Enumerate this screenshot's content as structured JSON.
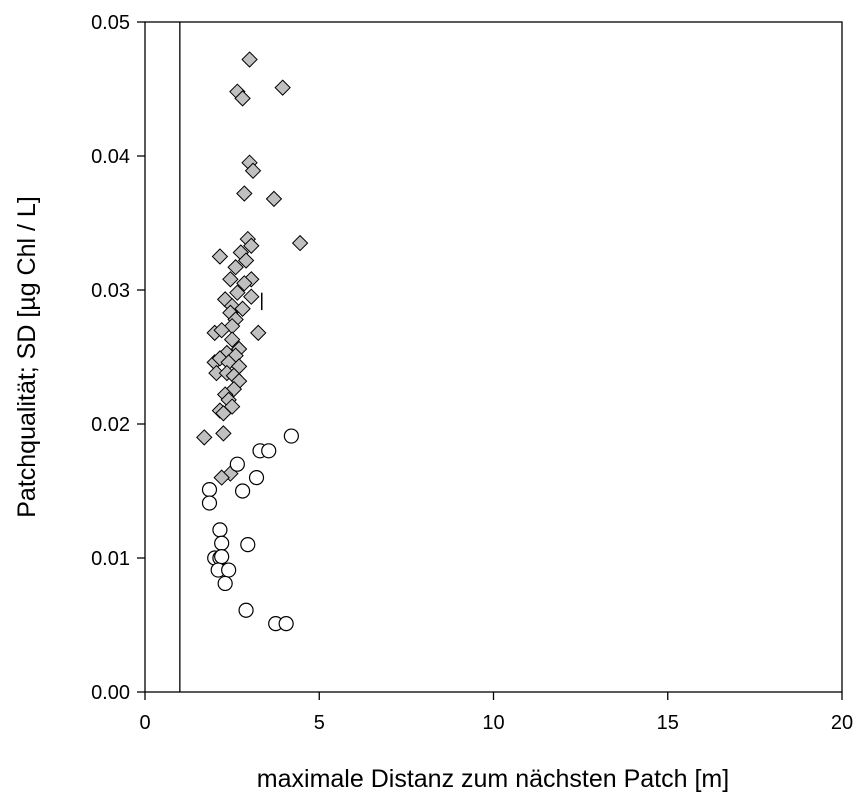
{
  "chart_data": {
    "type": "scatter",
    "title": "",
    "xlabel": "maximale Distanz zum nächsten Patch [m]",
    "ylabel": "Patchqualität; SD [µg Chl / L]",
    "xlim": [
      0,
      20
    ],
    "ylim": [
      0.0,
      0.05
    ],
    "x_ticks": [
      "0",
      "5",
      "10",
      "15",
      "20"
    ],
    "y_ticks": [
      "0.00",
      "0.01",
      "0.02",
      "0.03",
      "0.04",
      "0.05"
    ],
    "reference_line_x": 1,
    "grid": false,
    "legend": "none",
    "series": [
      {
        "marker": "diamond",
        "fill": "#c0c0c0",
        "points": [
          [
            3.0,
            0.0472
          ],
          [
            2.65,
            0.0448
          ],
          [
            2.8,
            0.0443
          ],
          [
            3.95,
            0.0451
          ],
          [
            3.0,
            0.0395
          ],
          [
            3.1,
            0.0389
          ],
          [
            2.85,
            0.0372
          ],
          [
            3.7,
            0.0368
          ],
          [
            4.45,
            0.0335
          ],
          [
            2.95,
            0.0338
          ],
          [
            3.05,
            0.0333
          ],
          [
            2.75,
            0.0328
          ],
          [
            2.15,
            0.0325
          ],
          [
            2.9,
            0.0322
          ],
          [
            2.6,
            0.0317
          ],
          [
            2.45,
            0.0308
          ],
          [
            3.05,
            0.0308
          ],
          [
            2.85,
            0.0305
          ],
          [
            2.65,
            0.0298
          ],
          [
            2.3,
            0.0293
          ],
          [
            3.05,
            0.0295
          ],
          [
            2.5,
            0.0288
          ],
          [
            2.8,
            0.0286
          ],
          [
            2.45,
            0.0283
          ],
          [
            2.6,
            0.0278
          ],
          [
            2.5,
            0.0273
          ],
          [
            2.0,
            0.0268
          ],
          [
            2.2,
            0.027
          ],
          [
            3.25,
            0.0268
          ],
          [
            2.5,
            0.0263
          ],
          [
            2.7,
            0.0256
          ],
          [
            2.35,
            0.0253
          ],
          [
            2.6,
            0.0251
          ],
          [
            2.0,
            0.0246
          ],
          [
            2.15,
            0.0249
          ],
          [
            2.4,
            0.0246
          ],
          [
            2.7,
            0.0243
          ],
          [
            2.05,
            0.0238
          ],
          [
            2.35,
            0.0238
          ],
          [
            2.55,
            0.0236
          ],
          [
            2.7,
            0.0232
          ],
          [
            2.55,
            0.0226
          ],
          [
            2.3,
            0.0222
          ],
          [
            2.4,
            0.0218
          ],
          [
            2.5,
            0.0213
          ],
          [
            2.15,
            0.021
          ],
          [
            2.25,
            0.0208
          ],
          [
            1.7,
            0.019
          ],
          [
            2.25,
            0.0193
          ],
          [
            2.45,
            0.0163
          ],
          [
            2.2,
            0.016
          ]
        ]
      },
      {
        "marker": "circle",
        "fill": "#ffffff",
        "points": [
          [
            4.2,
            0.0191
          ],
          [
            3.3,
            0.018
          ],
          [
            3.55,
            0.018
          ],
          [
            2.65,
            0.017
          ],
          [
            1.85,
            0.0151
          ],
          [
            3.2,
            0.016
          ],
          [
            2.8,
            0.015
          ],
          [
            1.85,
            0.0141
          ],
          [
            2.15,
            0.0121
          ],
          [
            2.2,
            0.0111
          ],
          [
            2.95,
            0.011
          ],
          [
            2.0,
            0.01
          ],
          [
            2.15,
            0.01
          ],
          [
            2.2,
            0.0101
          ],
          [
            2.1,
            0.0091
          ],
          [
            2.4,
            0.0091
          ],
          [
            2.3,
            0.0081
          ],
          [
            2.9,
            0.0061
          ],
          [
            3.75,
            0.0051
          ],
          [
            4.05,
            0.0051
          ]
        ]
      }
    ],
    "error_bar": {
      "x": 3.35,
      "y_low": 0.0285,
      "y_high": 0.0298
    }
  }
}
